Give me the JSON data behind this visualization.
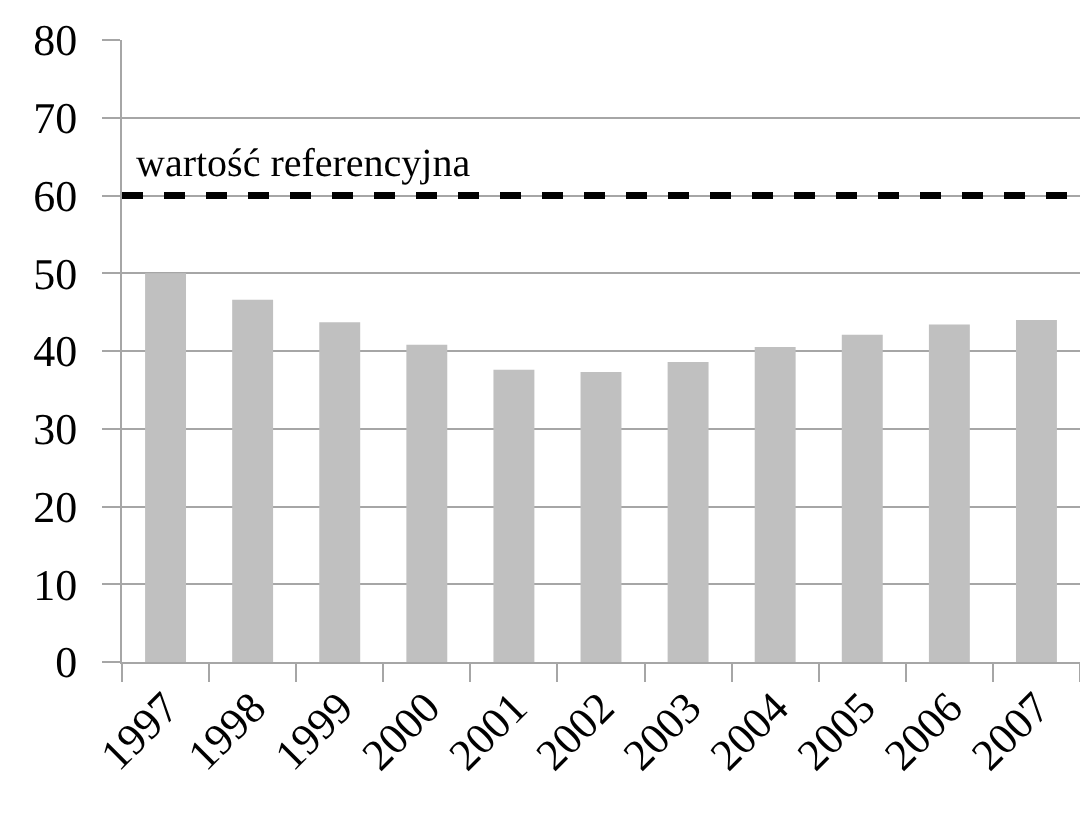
{
  "chart_data": {
    "type": "bar",
    "categories": [
      "1997",
      "1998",
      "1999",
      "2000",
      "2001",
      "2002",
      "2003",
      "2004",
      "2005",
      "2006",
      "2007"
    ],
    "values": [
      50.0,
      46.6,
      43.7,
      40.8,
      37.6,
      37.3,
      38.6,
      40.5,
      42.1,
      43.4,
      44.0
    ],
    "color": "#c0c0c0",
    "ylim": [
      0,
      80
    ],
    "yticks": [
      0,
      10,
      20,
      30,
      40,
      50,
      60,
      70,
      80
    ],
    "grid": "y",
    "ref_lines": [
      {
        "axis": "y",
        "value": 60,
        "label": "wartość referencyjna",
        "color": "#000000",
        "line_style": "dashed"
      }
    ]
  }
}
